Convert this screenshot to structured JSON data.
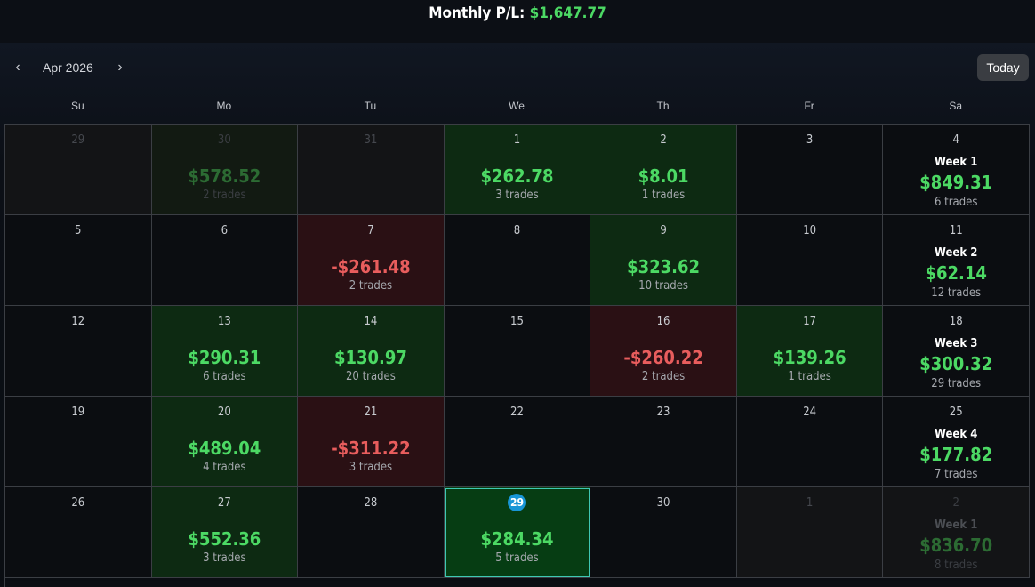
{
  "header": {
    "monthly_label": "Monthly P/L:",
    "monthly_value": "$1,647.77"
  },
  "nav": {
    "prev_icon": "‹",
    "next_icon": "›",
    "month": "Apr 2026",
    "today": "Today"
  },
  "weekdays": [
    "Su",
    "Mo",
    "Tu",
    "We",
    "Th",
    "Fr",
    "Sa"
  ],
  "colors": {
    "profit": "#4cd964",
    "loss": "#e85d5d",
    "today_badge": "#1896d6",
    "selected_border": "#3fc7b3"
  },
  "cells": [
    {
      "day": "29",
      "other": true
    },
    {
      "day": "30",
      "other": true,
      "amount": "$578.52",
      "trades": "2 trades",
      "kind": "profit"
    },
    {
      "day": "31",
      "other": true
    },
    {
      "day": "1",
      "amount": "$262.78",
      "trades": "3 trades",
      "kind": "profit"
    },
    {
      "day": "2",
      "amount": "$8.01",
      "trades": "1 trades",
      "kind": "profit"
    },
    {
      "day": "3"
    },
    {
      "day": "4",
      "week": "Week 1",
      "week_amount": "$849.31",
      "week_trades": "6 trades"
    },
    {
      "day": "5"
    },
    {
      "day": "6"
    },
    {
      "day": "7",
      "amount": "-$261.48",
      "trades": "2 trades",
      "kind": "loss"
    },
    {
      "day": "8"
    },
    {
      "day": "9",
      "amount": "$323.62",
      "trades": "10 trades",
      "kind": "profit"
    },
    {
      "day": "10"
    },
    {
      "day": "11",
      "week": "Week 2",
      "week_amount": "$62.14",
      "week_trades": "12 trades"
    },
    {
      "day": "12"
    },
    {
      "day": "13",
      "amount": "$290.31",
      "trades": "6 trades",
      "kind": "profit"
    },
    {
      "day": "14",
      "amount": "$130.97",
      "trades": "20 trades",
      "kind": "profit"
    },
    {
      "day": "15"
    },
    {
      "day": "16",
      "amount": "-$260.22",
      "trades": "2 trades",
      "kind": "loss"
    },
    {
      "day": "17",
      "amount": "$139.26",
      "trades": "1 trades",
      "kind": "profit"
    },
    {
      "day": "18",
      "week": "Week 3",
      "week_amount": "$300.32",
      "week_trades": "29 trades"
    },
    {
      "day": "19"
    },
    {
      "day": "20",
      "amount": "$489.04",
      "trades": "4 trades",
      "kind": "profit"
    },
    {
      "day": "21",
      "amount": "-$311.22",
      "trades": "3 trades",
      "kind": "loss"
    },
    {
      "day": "22"
    },
    {
      "day": "23"
    },
    {
      "day": "24"
    },
    {
      "day": "25",
      "week": "Week 4",
      "week_amount": "$177.82",
      "week_trades": "7 trades"
    },
    {
      "day": "26"
    },
    {
      "day": "27",
      "amount": "$552.36",
      "trades": "3 trades",
      "kind": "profit"
    },
    {
      "day": "28"
    },
    {
      "day": "29",
      "amount": "$284.34",
      "trades": "5 trades",
      "kind": "profit",
      "today": true
    },
    {
      "day": "30"
    },
    {
      "day": "1",
      "other": true
    },
    {
      "day": "2",
      "other": true,
      "week": "Week 1",
      "week_amount": "$836.70",
      "week_trades": "8 trades"
    }
  ]
}
